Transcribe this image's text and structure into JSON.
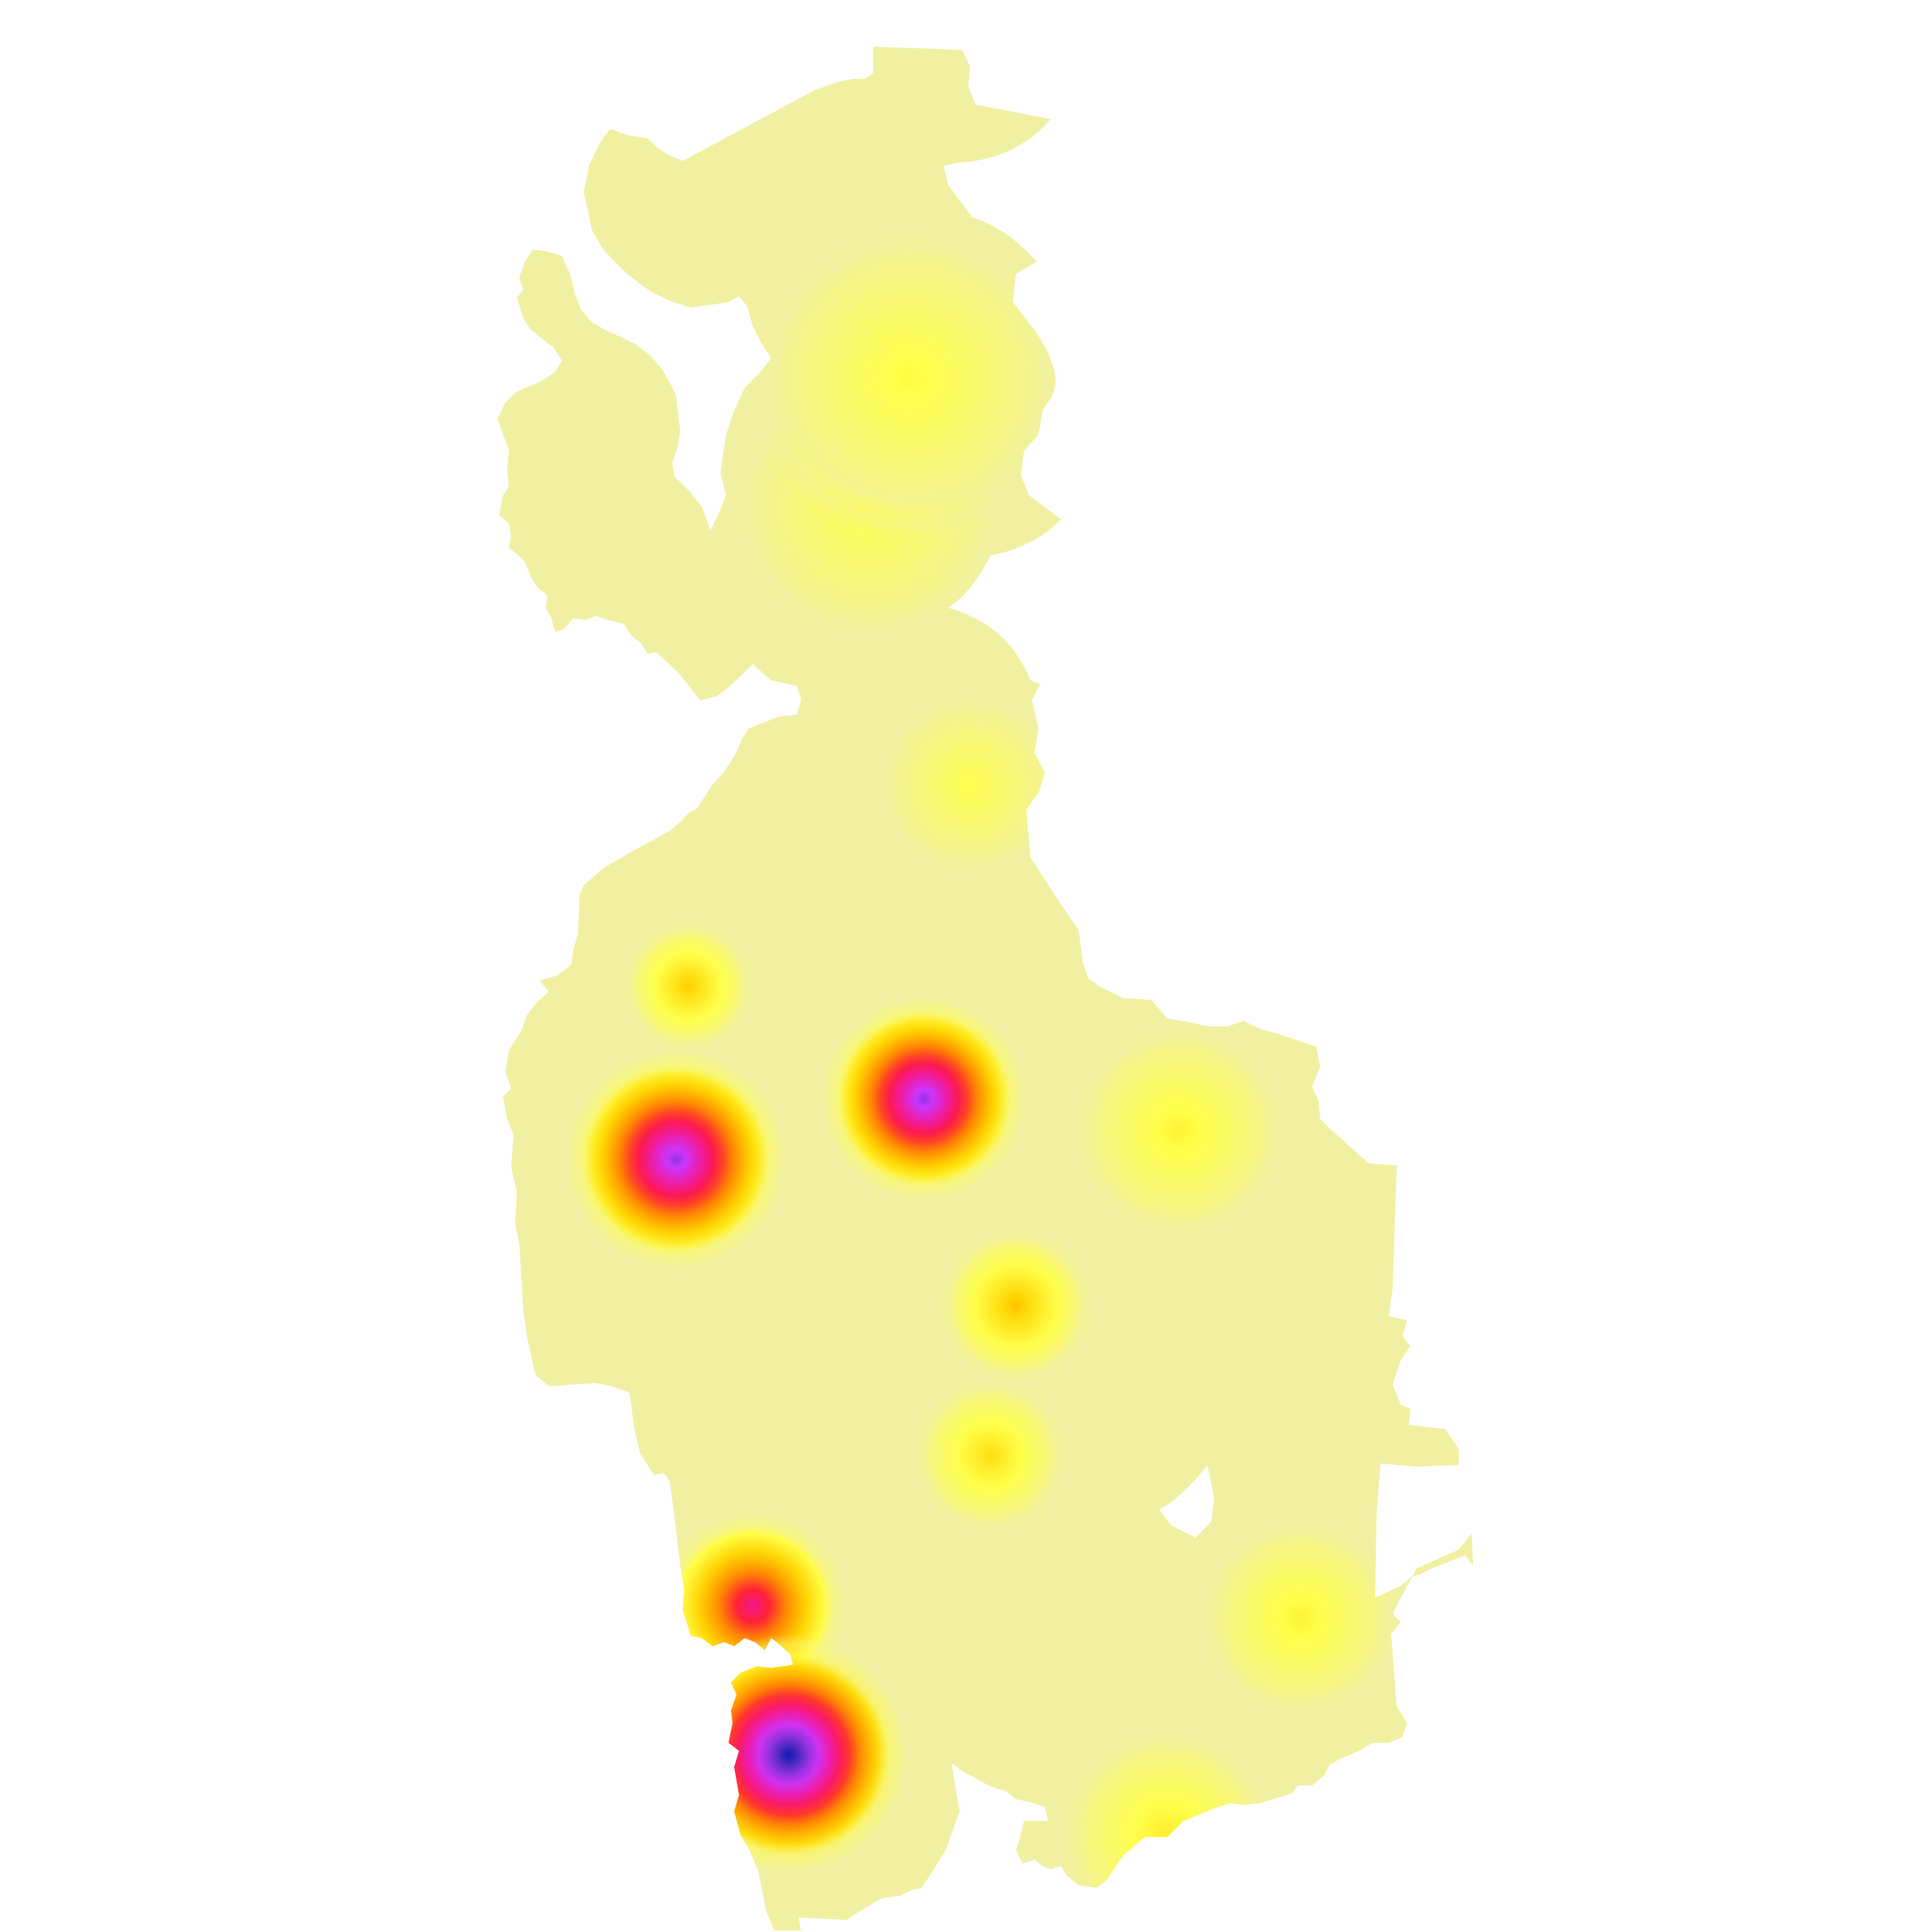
{
  "map": {
    "kind": "heatmap-over-region",
    "background_color": "#ffffff",
    "base_fill_color": "#f1f0a2",
    "color_ramp": [
      "#f1f0a2",
      "#ffff4a",
      "#ffd400",
      "#ff8a00",
      "#ff1a3a",
      "#f01aa8",
      "#c837ff",
      "#6a2ec8",
      "#0a1ab0"
    ],
    "hotspots": [
      {
        "name": "hotspot-southwest-peak",
        "intensity": 1.0
      },
      {
        "name": "hotspot-west-center",
        "intensity": 0.82
      },
      {
        "name": "hotspot-center",
        "intensity": 0.82
      },
      {
        "name": "hotspot-southwest-upper",
        "intensity": 0.6
      },
      {
        "name": "hotspot-center-south",
        "intensity": 0.28
      },
      {
        "name": "hotspot-west-upper",
        "intensity": 0.26
      },
      {
        "name": "hotspot-south-center",
        "intensity": 0.22
      },
      {
        "name": "hotspot-east",
        "intensity": 0.16
      },
      {
        "name": "hotspot-southeast",
        "intensity": 0.16
      },
      {
        "name": "hotspot-south-edge",
        "intensity": 0.18
      },
      {
        "name": "hotspot-north",
        "intensity": 0.14
      },
      {
        "name": "hotspot-north-mid",
        "intensity": 0.12
      },
      {
        "name": "hotspot-middle",
        "intensity": 0.12
      }
    ]
  }
}
